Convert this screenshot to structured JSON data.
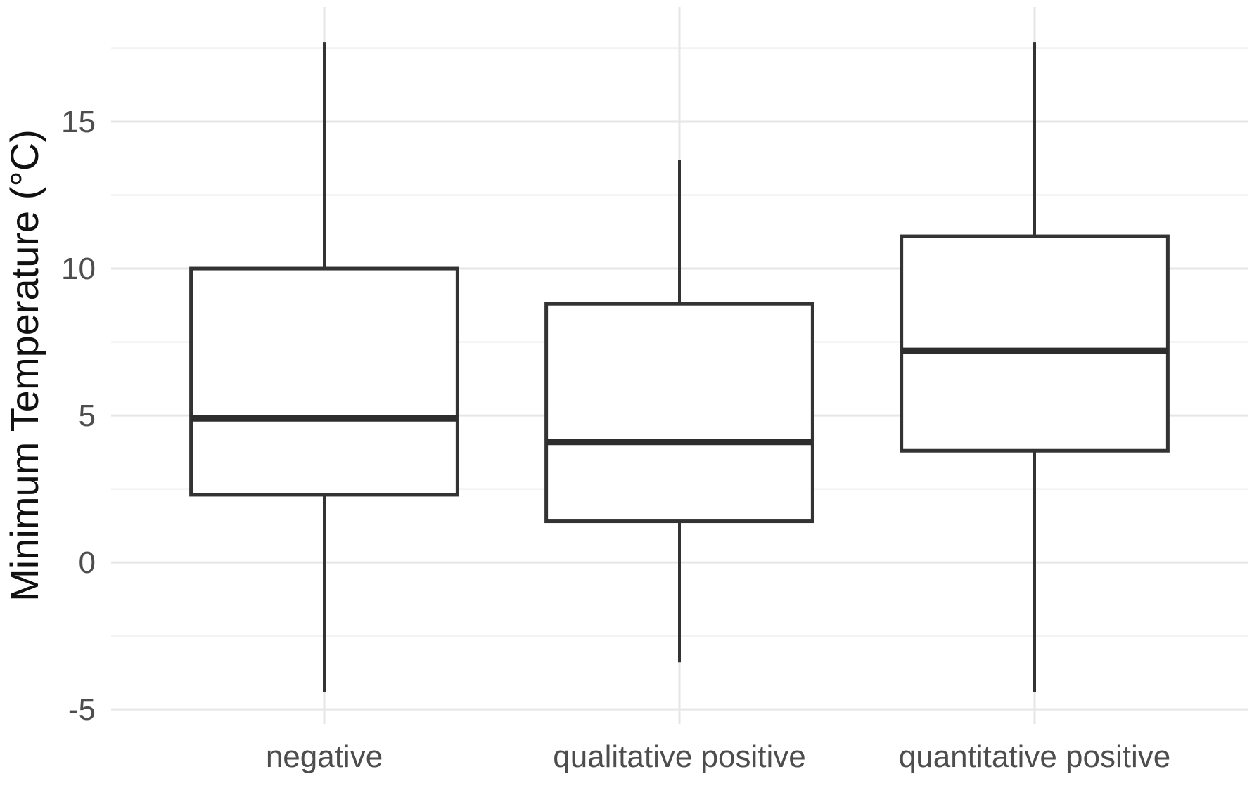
{
  "chart_data": {
    "type": "boxplot",
    "title": "",
    "xlabel": "",
    "ylabel": "Minimum Temperature (°C)",
    "categories": [
      "negative",
      "qualitative positive",
      "quantitative positive"
    ],
    "series": [
      {
        "name": "negative",
        "whisker_low": -4.4,
        "q1": 2.3,
        "median": 4.9,
        "q3": 10.0,
        "whisker_high": 17.7
      },
      {
        "name": "qualitative positive",
        "whisker_low": -3.4,
        "q1": 1.4,
        "median": 4.1,
        "q3": 8.8,
        "whisker_high": 13.7
      },
      {
        "name": "quantitative positive",
        "whisker_low": -4.4,
        "q1": 3.8,
        "median": 7.2,
        "q3": 11.1,
        "whisker_high": 17.7
      }
    ],
    "y_axis": {
      "major_ticks": [
        -5,
        0,
        5,
        10,
        15
      ],
      "minor_ticks": [
        -2.5,
        2.5,
        7.5,
        12.5,
        17.5
      ],
      "range": [
        -5.5,
        18.9
      ]
    },
    "x_axis": {
      "vertical_gridlines": true
    },
    "grid": "horizontal major+minor, vertical major per category",
    "legend": "none",
    "style": {
      "background": "#ffffff",
      "box_fill": "#ffffff",
      "box_stroke": "#333333",
      "median_stroke": "#2d2d2d",
      "whisker_stroke": "#333333",
      "grid_major": "#e6e6e6",
      "grid_minor": "#f2f2f2",
      "axis_text_color": "#4d4d4d",
      "axis_title_color": "#111111"
    }
  }
}
